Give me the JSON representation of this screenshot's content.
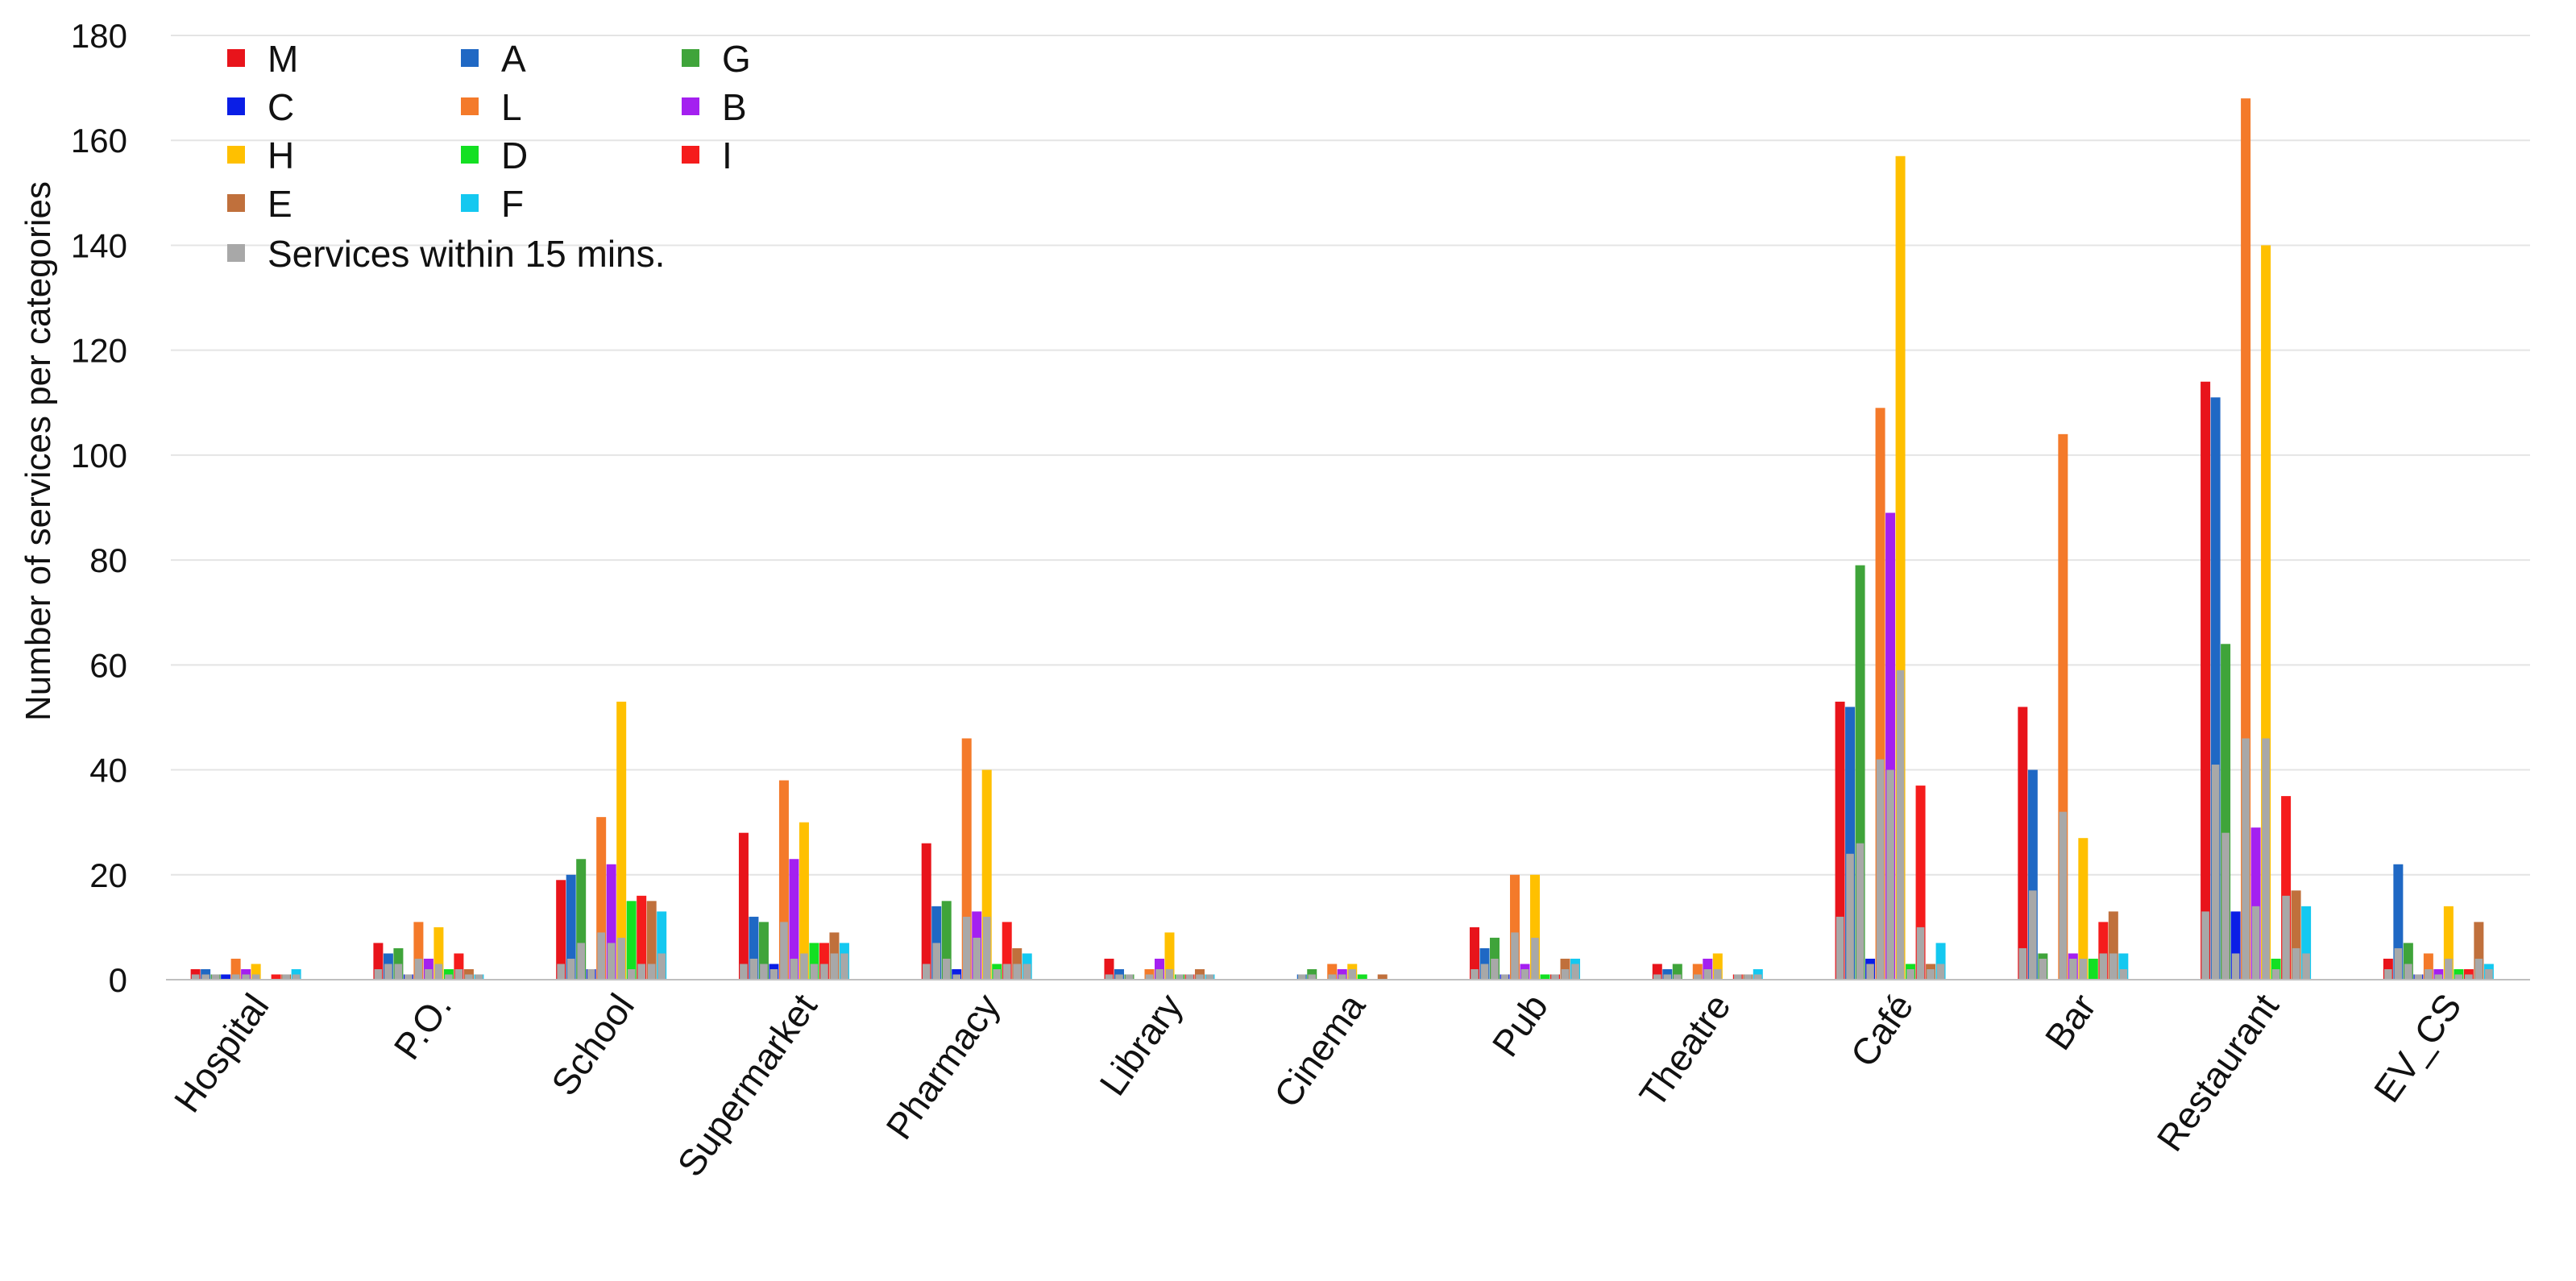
{
  "chart_data": {
    "type": "bar",
    "title": "",
    "xlabel": "",
    "ylabel": "Number of services per categories",
    "ylim": [
      0,
      180
    ],
    "yticks": [
      0,
      20,
      40,
      60,
      80,
      100,
      120,
      140,
      160,
      180
    ],
    "grid": true,
    "legend_position": "top-left",
    "categories": [
      "Hospital",
      "P.O.",
      "School",
      "Supermarket",
      "Pharmacy",
      "Library",
      "Cinema",
      "Pub",
      "Theatre",
      "Café",
      "Bar",
      "Restaurant",
      "EV_CS"
    ],
    "series": [
      {
        "name": "M",
        "color": "#e8141b",
        "values": [
          2,
          7,
          19,
          28,
          26,
          4,
          0,
          10,
          3,
          53,
          52,
          114,
          4
        ]
      },
      {
        "name": "A",
        "color": "#1f68c4",
        "values": [
          2,
          5,
          20,
          12,
          14,
          2,
          1,
          6,
          2,
          52,
          40,
          111,
          22
        ]
      },
      {
        "name": "G",
        "color": "#3fa43a",
        "values": [
          1,
          6,
          23,
          11,
          15,
          1,
          2,
          8,
          3,
          79,
          5,
          64,
          7
        ]
      },
      {
        "name": "C",
        "color": "#0a1ee6",
        "values": [
          1,
          1,
          2,
          3,
          2,
          0,
          0,
          1,
          0,
          4,
          0,
          13,
          1
        ]
      },
      {
        "name": "L",
        "color": "#f47a2a",
        "values": [
          4,
          11,
          31,
          38,
          46,
          2,
          3,
          20,
          3,
          109,
          104,
          168,
          5
        ]
      },
      {
        "name": "B",
        "color": "#a420f0",
        "values": [
          2,
          4,
          22,
          23,
          13,
          4,
          2,
          3,
          4,
          89,
          5,
          29,
          2
        ]
      },
      {
        "name": "H",
        "color": "#ffc000",
        "values": [
          3,
          10,
          53,
          30,
          40,
          9,
          3,
          20,
          5,
          157,
          27,
          140,
          14
        ]
      },
      {
        "name": "D",
        "color": "#13e022",
        "values": [
          0,
          2,
          15,
          7,
          3,
          1,
          1,
          1,
          0,
          3,
          4,
          4,
          2
        ]
      },
      {
        "name": "I",
        "color": "#f51c1c",
        "values": [
          1,
          5,
          16,
          7,
          11,
          1,
          0,
          1,
          1,
          37,
          11,
          35,
          2
        ]
      },
      {
        "name": "E",
        "color": "#c0703c",
        "values": [
          1,
          2,
          15,
          9,
          6,
          2,
          1,
          4,
          1,
          3,
          13,
          17,
          11
        ]
      },
      {
        "name": "F",
        "color": "#14c8f0",
        "values": [
          2,
          1,
          13,
          7,
          5,
          1,
          0,
          4,
          2,
          7,
          5,
          14,
          3
        ]
      }
    ],
    "within_15_min": {
      "name": "Services within 15 mins.",
      "color": "#a8a8a8",
      "values": [
        [
          1,
          1,
          1,
          0,
          1,
          1,
          1,
          0,
          0,
          1,
          1
        ],
        [
          2,
          3,
          3,
          1,
          4,
          2,
          3,
          1,
          2,
          1,
          1
        ],
        [
          3,
          4,
          7,
          2,
          9,
          7,
          8,
          2,
          3,
          3,
          5
        ],
        [
          3,
          4,
          3,
          2,
          11,
          4,
          5,
          3,
          3,
          5,
          5
        ],
        [
          3,
          7,
          4,
          1,
          12,
          8,
          12,
          2,
          3,
          3,
          3
        ],
        [
          1,
          1,
          1,
          0,
          1,
          2,
          2,
          1,
          1,
          1,
          1
        ],
        [
          0,
          1,
          1,
          0,
          1,
          1,
          2,
          0,
          0,
          0,
          0
        ],
        [
          2,
          3,
          4,
          1,
          9,
          2,
          8,
          0,
          1,
          2,
          3
        ],
        [
          1,
          1,
          1,
          0,
          1,
          2,
          2,
          0,
          1,
          1,
          1
        ],
        [
          12,
          24,
          26,
          3,
          42,
          40,
          59,
          2,
          10,
          2,
          3
        ],
        [
          6,
          17,
          4,
          0,
          32,
          4,
          4,
          0,
          5,
          5,
          2
        ],
        [
          13,
          41,
          28,
          5,
          46,
          14,
          46,
          2,
          16,
          6,
          5
        ],
        [
          2,
          6,
          3,
          1,
          2,
          1,
          4,
          1,
          1,
          4,
          2
        ]
      ]
    }
  }
}
